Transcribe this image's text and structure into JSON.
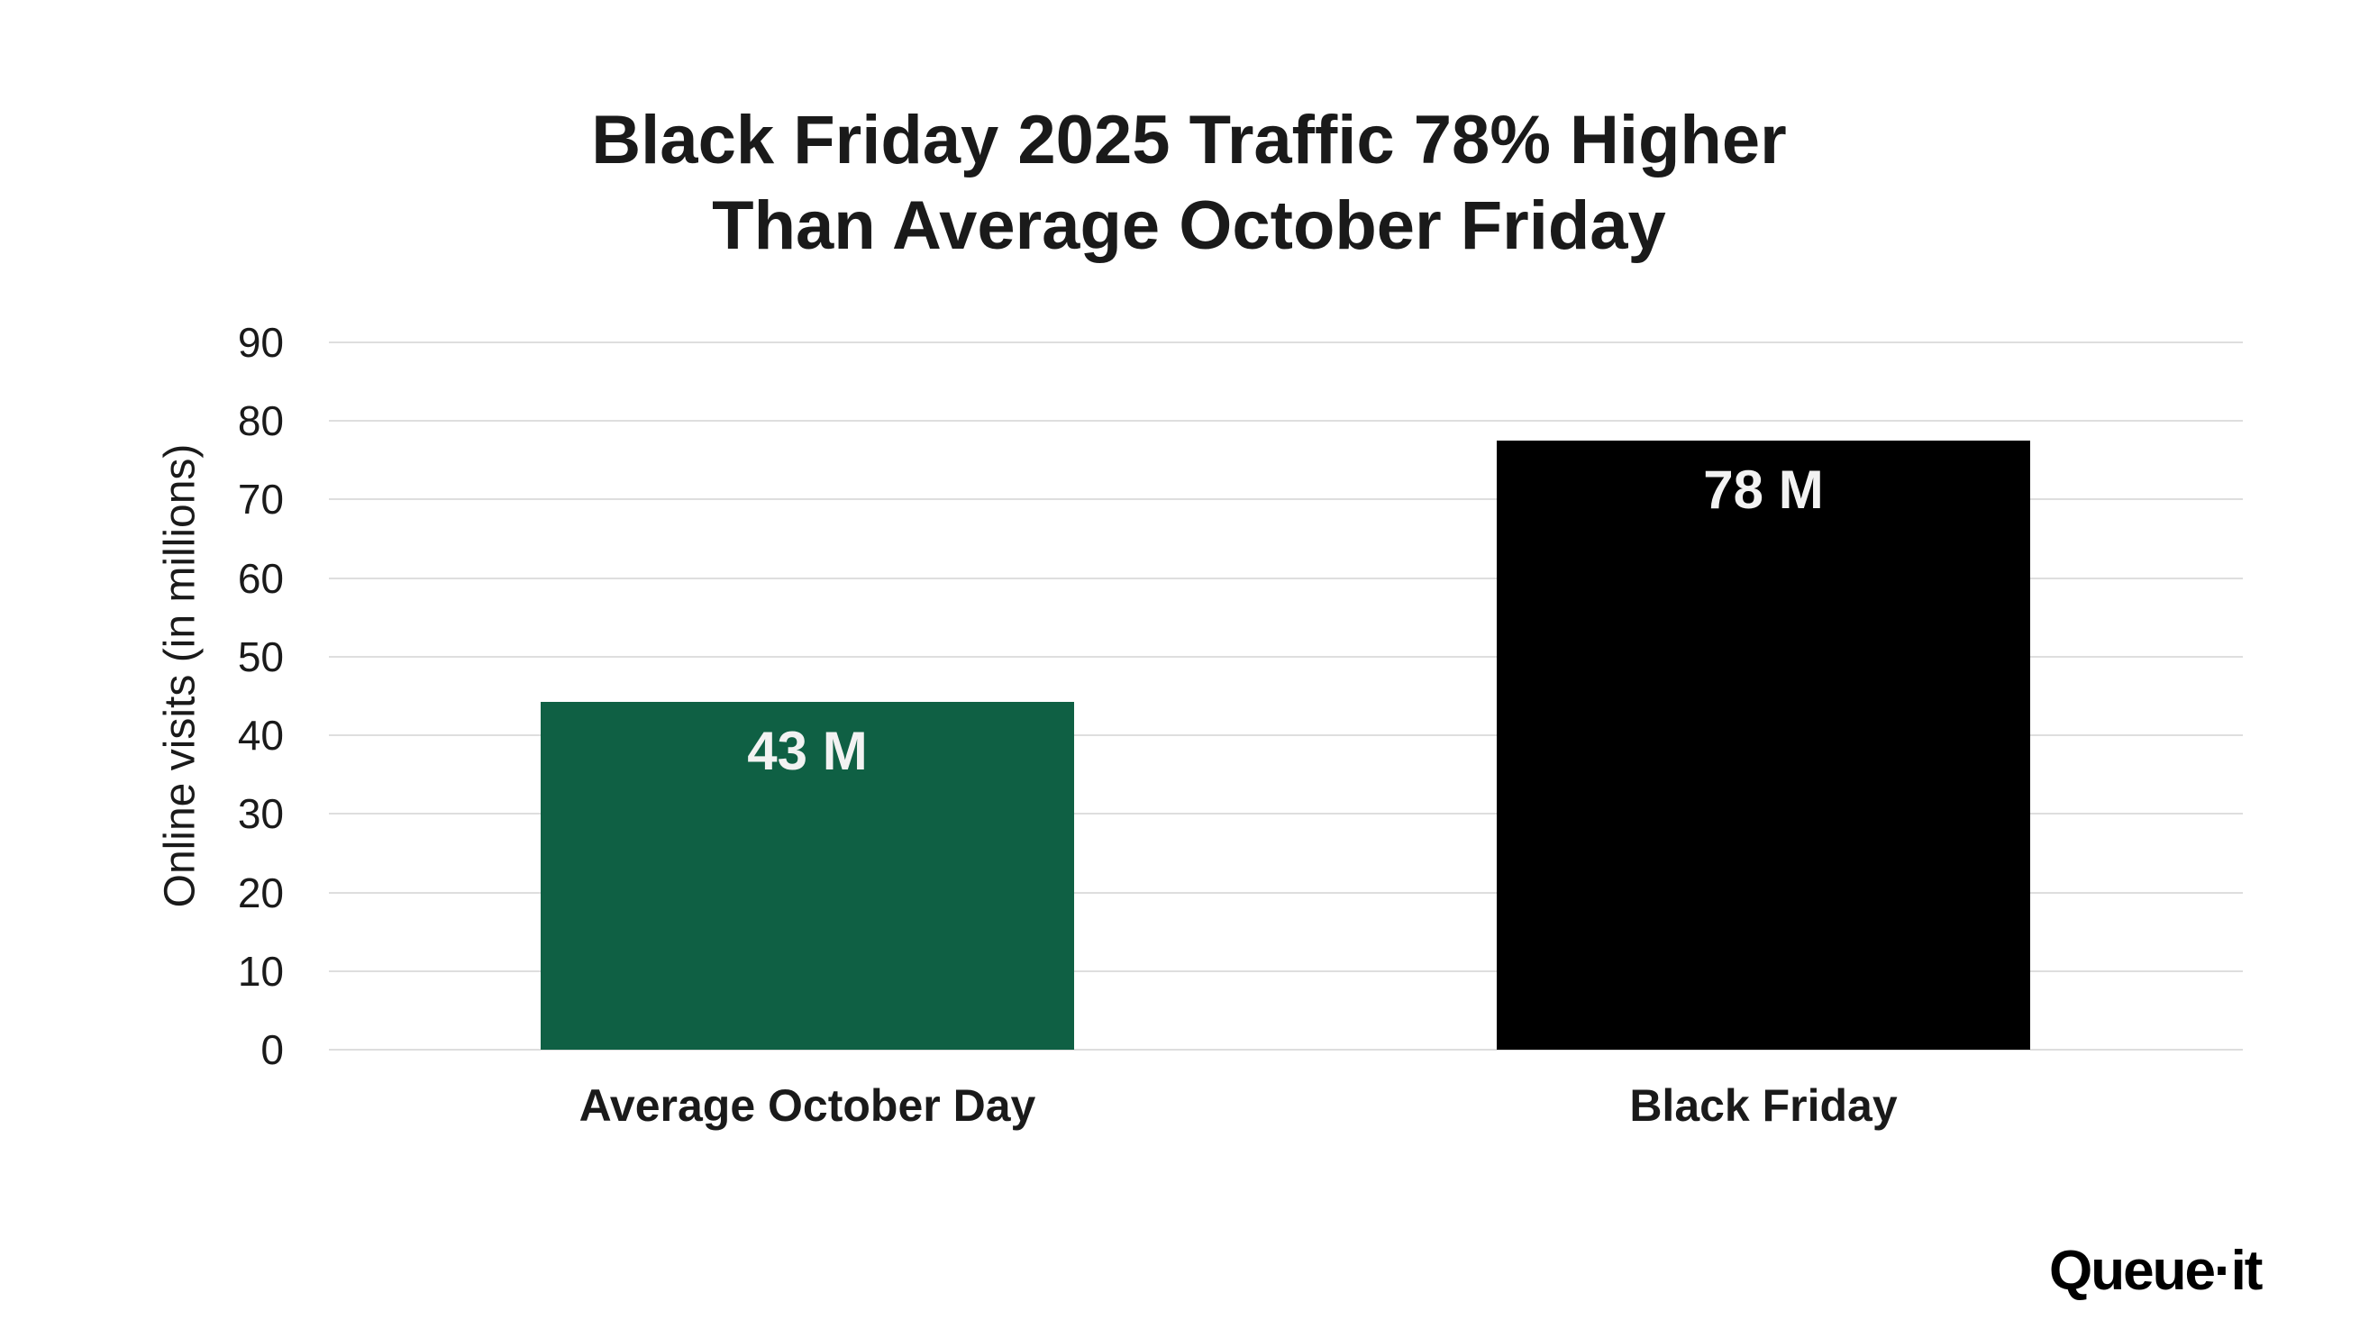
{
  "title": {
    "line1": "Black Friday 2025 Traffic 78% Higher",
    "line2": "Than Average October Friday"
  },
  "y_axis": {
    "label": "Online visits (in millions)",
    "ticks": [
      "0",
      "10",
      "20",
      "30",
      "40",
      "50",
      "60",
      "70",
      "80",
      "90"
    ]
  },
  "bars": [
    {
      "category": "Average October Day",
      "value_label": "43 M",
      "color": "#0f6044"
    },
    {
      "category": "Black Friday",
      "value_label": "78 M",
      "color": "#000000"
    }
  ],
  "logo": {
    "text": "Queue·it"
  },
  "colors": {
    "gridline": "#dedede",
    "bar_label_text": "#f2f2f2",
    "text": "#1a1a1a"
  },
  "chart_data": {
    "type": "bar",
    "title": "Black Friday 2025 Traffic 78% Higher Than Average October Friday",
    "categories": [
      "Average October Day",
      "Black Friday"
    ],
    "values": [
      43,
      78
    ],
    "data_labels": [
      "43 M",
      "78 M"
    ],
    "colors": [
      "#0f6044",
      "#000000"
    ],
    "xlabel": "",
    "ylabel": "Online visits (in millions)",
    "ylim": [
      0,
      90
    ],
    "yticks": [
      0,
      10,
      20,
      30,
      40,
      50,
      60,
      70,
      80,
      90
    ],
    "grid": true,
    "legend": null
  }
}
